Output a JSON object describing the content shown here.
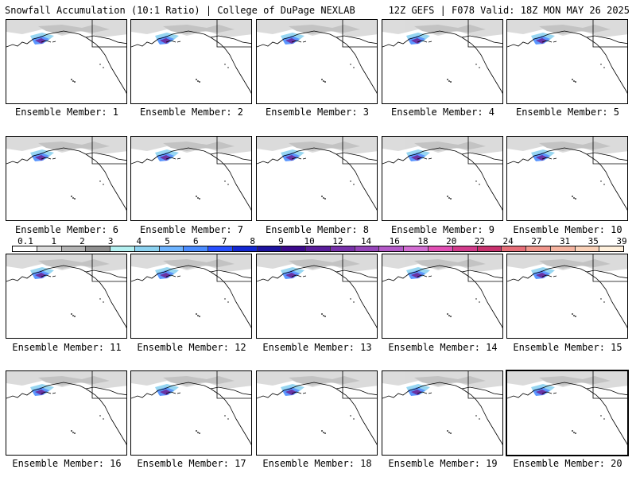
{
  "header": {
    "left_title": "Snowfall Accumulation (10:1 Ratio) | College of DuPage NEXLAB",
    "right_title": "12Z GEFS | F078 Valid: 18Z MON MAY 26 2025"
  },
  "panels": [
    {
      "label": "Ensemble Member: 1"
    },
    {
      "label": "Ensemble Member: 2"
    },
    {
      "label": "Ensemble Member: 3"
    },
    {
      "label": "Ensemble Member: 4"
    },
    {
      "label": "Ensemble Member: 5"
    },
    {
      "label": "Ensemble Member: 6"
    },
    {
      "label": "Ensemble Member: 7"
    },
    {
      "label": "Ensemble Member: 8"
    },
    {
      "label": "Ensemble Member: 9"
    },
    {
      "label": "Ensemble Member: 10"
    },
    {
      "label": "Ensemble Member: 11"
    },
    {
      "label": "Ensemble Member: 12"
    },
    {
      "label": "Ensemble Member: 13"
    },
    {
      "label": "Ensemble Member: 14"
    },
    {
      "label": "Ensemble Member: 15"
    },
    {
      "label": "Ensemble Member: 16"
    },
    {
      "label": "Ensemble Member: 17"
    },
    {
      "label": "Ensemble Member: 18"
    },
    {
      "label": "Ensemble Member: 19"
    },
    {
      "label": "Ensemble Member: 20",
      "selected": true
    }
  ],
  "colorbar": {
    "labels": [
      "0.1",
      "1",
      "2",
      "3",
      "4",
      "5",
      "6",
      "7",
      "8",
      "9",
      "10",
      "12",
      "14",
      "16",
      "18",
      "20",
      "22",
      "24",
      "27",
      "31",
      "35",
      "39"
    ],
    "colors": [
      "#ffffff",
      "#dcdcdc",
      "#b4b4b4",
      "#909090",
      "#b4f0f0",
      "#8cd2f0",
      "#6eb4ff",
      "#4b8cff",
      "#2850ff",
      "#1428d2",
      "#1e14a0",
      "#3c0a8c",
      "#5a1e9b",
      "#7832aa",
      "#9646b9",
      "#b45ac8",
      "#d26ed2",
      "#e150b4",
      "#d23c8c",
      "#c8326e",
      "#e66e78",
      "#f0968c",
      "#f5b4a0",
      "#fad2b9",
      "#fff0dc"
    ]
  }
}
